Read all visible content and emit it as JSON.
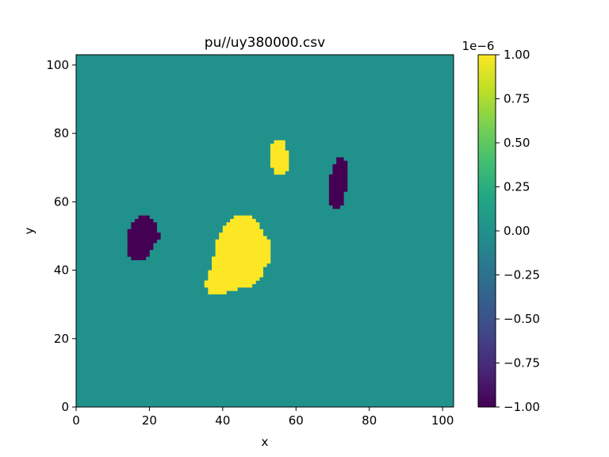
{
  "chart_data": {
    "type": "heatmap",
    "title": "pu//uy380000.csv",
    "xlabel": "x",
    "ylabel": "y",
    "xlim": [
      0,
      103
    ],
    "ylim": [
      0,
      103
    ],
    "xticks": [
      0,
      20,
      40,
      60,
      80,
      100
    ],
    "yticks": [
      0,
      20,
      40,
      60,
      80,
      100
    ],
    "colormap": "viridis",
    "background_value": 0,
    "colorbar": {
      "range": [
        -1.0,
        1.0
      ],
      "offset_label": "1e−6",
      "ticks": [
        1.0,
        0.75,
        0.5,
        0.25,
        0.0,
        -0.25,
        -0.5,
        -0.75,
        -1.0
      ],
      "tick_labels": [
        "1.00",
        "0.75",
        "0.50",
        "0.25",
        "0.00",
        "−0.25",
        "−0.50",
        "−0.75",
        "−1.00"
      ]
    },
    "regions": [
      {
        "value": -1.0,
        "color": "#440154",
        "rows": [
          {
            "y": 43,
            "x0": 15,
            "x1": 18
          },
          {
            "y": 44,
            "x0": 14,
            "x1": 19
          },
          {
            "y": 45,
            "x0": 14,
            "x1": 19
          },
          {
            "y": 46,
            "x0": 14,
            "x1": 20
          },
          {
            "y": 47,
            "x0": 14,
            "x1": 20
          },
          {
            "y": 48,
            "x0": 14,
            "x1": 21
          },
          {
            "y": 49,
            "x0": 14,
            "x1": 22
          },
          {
            "y": 50,
            "x0": 14,
            "x1": 22
          },
          {
            "y": 51,
            "x0": 14,
            "x1": 21
          },
          {
            "y": 52,
            "x0": 15,
            "x1": 21
          },
          {
            "y": 53,
            "x0": 15,
            "x1": 21
          },
          {
            "y": 54,
            "x0": 16,
            "x1": 20
          },
          {
            "y": 55,
            "x0": 17,
            "x1": 19
          }
        ]
      },
      {
        "value": 1.0,
        "color": "#fde725",
        "rows": [
          {
            "y": 33,
            "x0": 36,
            "x1": 40
          },
          {
            "y": 34,
            "x0": 36,
            "x1": 43
          },
          {
            "y": 35,
            "x0": 35,
            "x1": 47
          },
          {
            "y": 36,
            "x0": 35,
            "x1": 48
          },
          {
            "y": 37,
            "x0": 36,
            "x1": 49
          },
          {
            "y": 38,
            "x0": 36,
            "x1": 50
          },
          {
            "y": 39,
            "x0": 36,
            "x1": 50
          },
          {
            "y": 40,
            "x0": 37,
            "x1": 50
          },
          {
            "y": 41,
            "x0": 37,
            "x1": 51
          },
          {
            "y": 42,
            "x0": 37,
            "x1": 52
          },
          {
            "y": 43,
            "x0": 37,
            "x1": 52
          },
          {
            "y": 44,
            "x0": 38,
            "x1": 52
          },
          {
            "y": 45,
            "x0": 38,
            "x1": 52
          },
          {
            "y": 46,
            "x0": 38,
            "x1": 52
          },
          {
            "y": 47,
            "x0": 38,
            "x1": 52
          },
          {
            "y": 48,
            "x0": 38,
            "x1": 52
          },
          {
            "y": 49,
            "x0": 39,
            "x1": 51
          },
          {
            "y": 50,
            "x0": 39,
            "x1": 50
          },
          {
            "y": 51,
            "x0": 40,
            "x1": 50
          },
          {
            "y": 52,
            "x0": 40,
            "x1": 49
          },
          {
            "y": 53,
            "x0": 41,
            "x1": 49
          },
          {
            "y": 54,
            "x0": 42,
            "x1": 48
          },
          {
            "y": 55,
            "x0": 43,
            "x1": 47
          }
        ]
      },
      {
        "value": 1.0,
        "color": "#fde725",
        "rows": [
          {
            "y": 68,
            "x0": 54,
            "x1": 56
          },
          {
            "y": 69,
            "x0": 54,
            "x1": 57
          },
          {
            "y": 70,
            "x0": 53,
            "x1": 57
          },
          {
            "y": 71,
            "x0": 53,
            "x1": 57
          },
          {
            "y": 72,
            "x0": 53,
            "x1": 57
          },
          {
            "y": 73,
            "x0": 53,
            "x1": 57
          },
          {
            "y": 74,
            "x0": 53,
            "x1": 57
          },
          {
            "y": 75,
            "x0": 53,
            "x1": 56
          },
          {
            "y": 76,
            "x0": 53,
            "x1": 56
          },
          {
            "y": 77,
            "x0": 54,
            "x1": 56
          }
        ]
      },
      {
        "value": -1.0,
        "color": "#440154",
        "rows": [
          {
            "y": 58,
            "x0": 70,
            "x1": 71
          },
          {
            "y": 59,
            "x0": 69,
            "x1": 72
          },
          {
            "y": 60,
            "x0": 69,
            "x1": 72
          },
          {
            "y": 61,
            "x0": 69,
            "x1": 72
          },
          {
            "y": 62,
            "x0": 69,
            "x1": 72
          },
          {
            "y": 63,
            "x0": 69,
            "x1": 73
          },
          {
            "y": 64,
            "x0": 69,
            "x1": 73
          },
          {
            "y": 65,
            "x0": 69,
            "x1": 73
          },
          {
            "y": 66,
            "x0": 69,
            "x1": 73
          },
          {
            "y": 67,
            "x0": 69,
            "x1": 73
          },
          {
            "y": 68,
            "x0": 70,
            "x1": 73
          },
          {
            "y": 69,
            "x0": 70,
            "x1": 73
          },
          {
            "y": 70,
            "x0": 70,
            "x1": 73
          },
          {
            "y": 71,
            "x0": 71,
            "x1": 73
          },
          {
            "y": 72,
            "x0": 71,
            "x1": 72
          }
        ]
      }
    ]
  }
}
